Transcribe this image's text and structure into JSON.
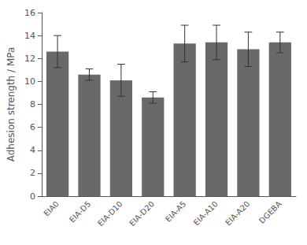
{
  "chart_data": {
    "type": "bar",
    "categories": [
      "EIA0",
      "EIA-D5",
      "EIA-D10",
      "EIA-D20",
      "EIA-A5",
      "EIA-A10",
      "EIA-A20",
      "DGEBA"
    ],
    "values": [
      12.6,
      10.6,
      10.1,
      8.6,
      13.3,
      13.4,
      12.8,
      13.4
    ],
    "errors": [
      1.4,
      0.5,
      1.4,
      0.5,
      1.6,
      1.5,
      1.5,
      0.9
    ],
    "color": "#696969",
    "ylabel": "Adhesion strength / MPa",
    "ylim": [
      0,
      16
    ],
    "yticks": [
      0,
      2,
      4,
      6,
      8,
      10,
      12,
      14,
      16
    ],
    "grid": false
  }
}
